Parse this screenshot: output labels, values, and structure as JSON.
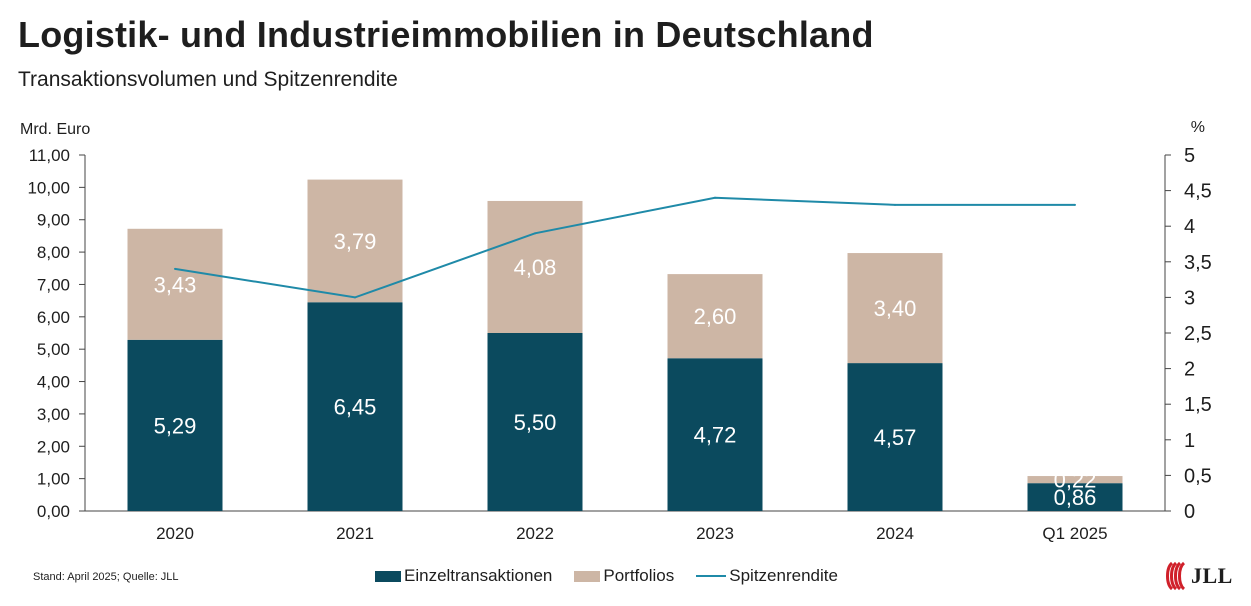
{
  "header": {
    "title": "Logistik- und Industrieimmobilien in Deutschland",
    "subtitle": "Transaktionsvolumen und Spitzenrendite"
  },
  "chart_data": {
    "type": "bar",
    "stacked": true,
    "categories": [
      "2020",
      "2021",
      "2022",
      "2023",
      "2024",
      "Q1 2025"
    ],
    "series": [
      {
        "name": "Einzeltransaktionen",
        "axis": "left",
        "color": "#0b4a5e",
        "values": [
          5.29,
          6.45,
          5.5,
          4.72,
          4.57,
          0.86
        ],
        "labels": [
          "5,29",
          "6,45",
          "5,50",
          "4,72",
          "4,57",
          "0,86"
        ]
      },
      {
        "name": "Portfolios",
        "axis": "left",
        "color": "#cdb6a5",
        "values": [
          3.43,
          3.79,
          4.08,
          2.6,
          3.4,
          0.22
        ],
        "labels": [
          "3,43",
          "3,79",
          "4,08",
          "2,60",
          "3,40",
          "0,22"
        ]
      },
      {
        "name": "Spitzenrendite",
        "axis": "right",
        "type": "line",
        "color": "#1f8aa8",
        "values": [
          3.4,
          3.0,
          3.9,
          4.4,
          4.3,
          4.3
        ]
      }
    ],
    "y_left": {
      "label": "Mrd. Euro",
      "range": [
        0,
        11
      ],
      "ticks": [
        0,
        1,
        2,
        3,
        4,
        5,
        6,
        7,
        8,
        9,
        10,
        11
      ],
      "tick_labels": [
        "0,00",
        "1,00",
        "2,00",
        "3,00",
        "4,00",
        "5,00",
        "6,00",
        "7,00",
        "8,00",
        "9,00",
        "10,00",
        "11,00"
      ]
    },
    "y_right": {
      "label": "%",
      "range": [
        0,
        5
      ],
      "ticks": [
        0,
        0.5,
        1,
        1.5,
        2,
        2.5,
        3,
        3.5,
        4,
        4.5,
        5
      ],
      "tick_labels": [
        "0",
        "0,5",
        "1",
        "1,5",
        "2",
        "2,5",
        "3",
        "3,5",
        "4",
        "4,5",
        "5"
      ]
    },
    "grid": false,
    "legend_position": "bottom"
  },
  "legend": {
    "items": [
      {
        "label": "Einzeltransaktionen",
        "color": "#0b4a5e",
        "kind": "box"
      },
      {
        "label": "Portfolios",
        "color": "#cdb6a5",
        "kind": "box"
      },
      {
        "label": "Spitzenrendite",
        "color": "#1f8aa8",
        "kind": "line"
      }
    ]
  },
  "footnote": "Stand: April 2025; Quelle: JLL",
  "logo": {
    "text": "JLL",
    "icon": "jll-logo-icon",
    "color": "#d0202a"
  }
}
